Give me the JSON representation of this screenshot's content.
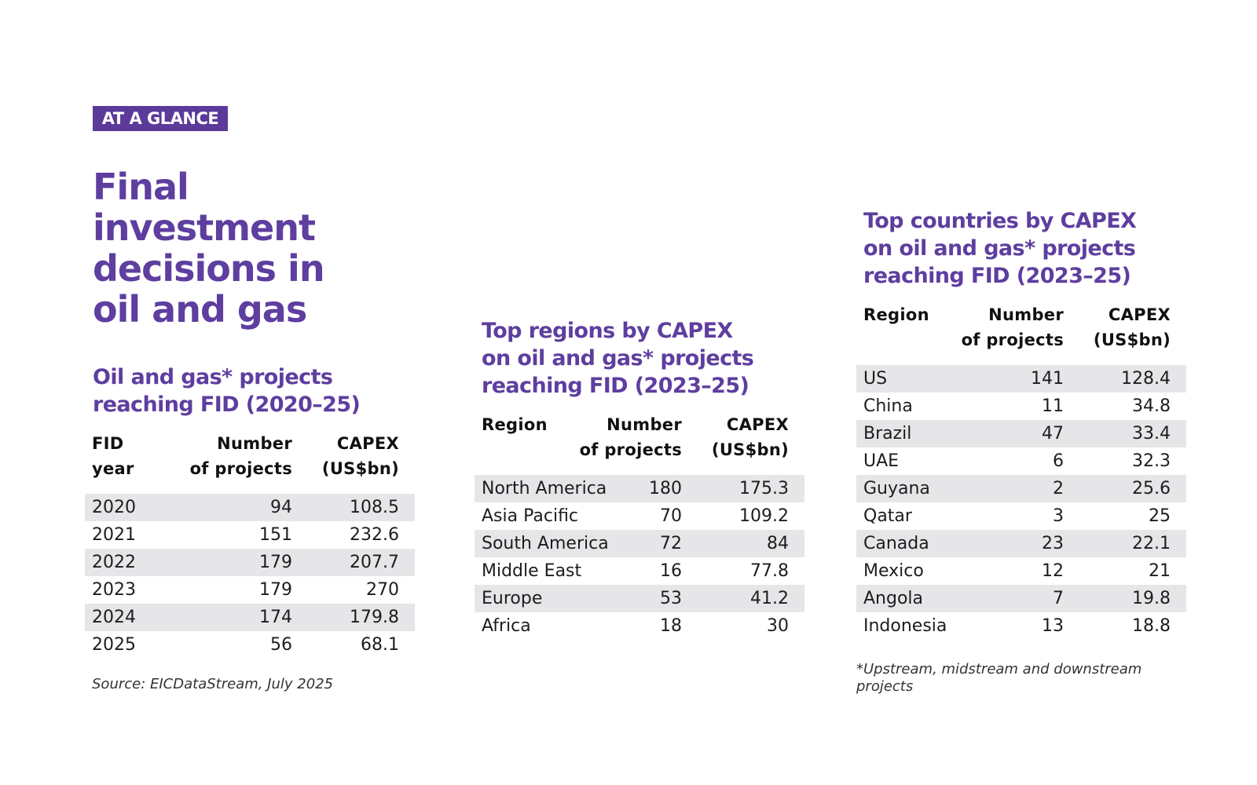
{
  "badge": "AT A GLANCE",
  "title": "Final investment decisions in oil and gas",
  "table1": {
    "title": "Oil and gas* projects\nreaching FID (2020–25)",
    "headers": [
      "FID\nyear",
      "Number\nof projects",
      "CAPEX\n(US$bn)"
    ],
    "rows": [
      [
        "2020",
        "94",
        "108.5"
      ],
      [
        "2021",
        "151",
        "232.6"
      ],
      [
        "2022",
        "179",
        "207.7"
      ],
      [
        "2023",
        "179",
        "270"
      ],
      [
        "2024",
        "174",
        "179.8"
      ],
      [
        "2025",
        "56",
        "68.1"
      ]
    ]
  },
  "source": "Source: EICDataStream, July 2025",
  "table2": {
    "title": "Top regions by CAPEX\non oil and gas* projects\nreaching FID (2023–25)",
    "headers": [
      "Region",
      "Number\nof projects",
      "CAPEX\n(US$bn)"
    ],
    "rows": [
      [
        "North America",
        "180",
        "175.3"
      ],
      [
        "Asia Pacific",
        "70",
        "109.2"
      ],
      [
        "South America",
        "72",
        "84"
      ],
      [
        "Middle East",
        "16",
        "77.8"
      ],
      [
        "Europe",
        "53",
        "41.2"
      ],
      [
        "Africa",
        "18",
        "30"
      ]
    ]
  },
  "table3": {
    "title": "Top countries by CAPEX\non oil and gas* projects\nreaching FID (2023–25)",
    "headers": [
      "Region",
      "Number\nof projects",
      "CAPEX\n(US$bn)"
    ],
    "rows": [
      [
        "US",
        "141",
        "128.4"
      ],
      [
        "China",
        "11",
        "34.8"
      ],
      [
        "Brazil",
        "47",
        "33.4"
      ],
      [
        "UAE",
        "6",
        "32.3"
      ],
      [
        "Guyana",
        "2",
        "25.6"
      ],
      [
        "Qatar",
        "3",
        "25"
      ],
      [
        "Canada",
        "23",
        "22.1"
      ],
      [
        "Mexico",
        "12",
        "21"
      ],
      [
        "Angola",
        "7",
        "19.8"
      ],
      [
        "Indonesia",
        "13",
        "18.8"
      ]
    ]
  },
  "footnote": "*Upstream, midstream and downstream projects"
}
